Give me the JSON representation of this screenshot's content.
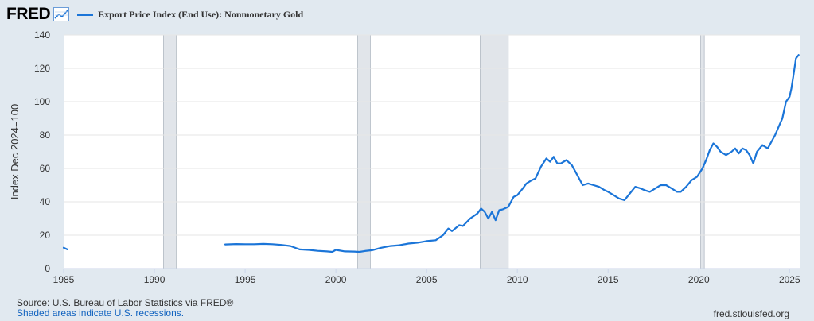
{
  "header": {
    "logo": "FRED",
    "series_label": "Export Price Index (End Use): Nonmonetary Gold"
  },
  "footer": {
    "source": "Source: U.S. Bureau of Labor Statistics via FRED®",
    "recession_note": "Shaded areas indicate U.S. recessions.",
    "site": "fred.stlouisfed.org"
  },
  "colors": {
    "line": "#1b75d8",
    "background": "#e1e9f0",
    "plot_bg": "#ffffff",
    "recession": "#e1e5ea"
  },
  "chart_data": {
    "type": "line",
    "title": "",
    "xlabel": "",
    "ylabel": "Index Dec 2024=100",
    "xlim": [
      1985,
      2025.6
    ],
    "ylim": [
      0,
      140
    ],
    "x_ticks": [
      1985,
      1990,
      1995,
      2000,
      2005,
      2010,
      2015,
      2020,
      2025
    ],
    "y_ticks": [
      0,
      20,
      40,
      60,
      80,
      100,
      120,
      140
    ],
    "grid": true,
    "recessions": [
      [
        1990.5,
        1991.2
      ],
      [
        2001.2,
        2001.9
      ],
      [
        2007.95,
        2009.5
      ],
      [
        2020.1,
        2020.3
      ]
    ],
    "series": [
      {
        "name": "Export Price Index (End Use): Nonmonetary Gold",
        "segments": [
          {
            "x": [
              1985.0,
              1985.2
            ],
            "y": [
              12.5,
              11.5
            ]
          },
          {
            "x": [
              1993.9,
              1994.5,
              1995.0,
              1995.5,
              1996.0,
              1996.5,
              1997.0,
              1997.5,
              1998.0,
              1998.5,
              1999.0,
              1999.5,
              1999.8,
              2000.0,
              2000.5,
              2001.0,
              2001.3,
              2001.6,
              2002.0,
              2002.5,
              2003.0,
              2003.5,
              2004.0,
              2004.5,
              2005.0,
              2005.5,
              2005.9,
              2006.2,
              2006.4,
              2006.8,
              2007.0,
              2007.4,
              2007.8,
              2008.0,
              2008.2,
              2008.4,
              2008.6,
              2008.8,
              2009.0,
              2009.2,
              2009.5,
              2009.8,
              2010.0,
              2010.3,
              2010.5,
              2010.8,
              2011.0,
              2011.3,
              2011.6,
              2011.8,
              2012.0,
              2012.2,
              2012.4,
              2012.7,
              2013.0,
              2013.3,
              2013.6,
              2013.9,
              2014.2,
              2014.5,
              2014.8,
              2015.0,
              2015.3,
              2015.6,
              2015.9,
              2016.2,
              2016.5,
              2016.8,
              2017.0,
              2017.3,
              2017.6,
              2017.9,
              2018.2,
              2018.5,
              2018.8,
              2019.0,
              2019.3,
              2019.6,
              2019.9,
              2020.2,
              2020.4,
              2020.6,
              2020.8,
              2021.0,
              2021.2,
              2021.5,
              2021.8,
              2022.0,
              2022.2,
              2022.4,
              2022.6,
              2022.8,
              2023.0,
              2023.2,
              2023.5,
              2023.8,
              2024.0,
              2024.2,
              2024.4,
              2024.6,
              2024.8,
              2025.0,
              2025.1,
              2025.2,
              2025.35,
              2025.5
            ],
            "y": [
              14.5,
              14.7,
              14.6,
              14.6,
              14.8,
              14.6,
              14.2,
              13.5,
              11.5,
              11.2,
              10.6,
              10.3,
              10.0,
              11.2,
              10.3,
              10.2,
              10.0,
              10.5,
              11.0,
              12.5,
              13.5,
              14.0,
              15.0,
              15.5,
              16.5,
              17.0,
              20.0,
              24.0,
              22.5,
              26.0,
              25.5,
              30.0,
              33.0,
              36.0,
              34.0,
              30.0,
              34.0,
              29.0,
              35.0,
              35.5,
              37.0,
              43.0,
              44.0,
              48.0,
              51.0,
              53.0,
              54.0,
              61.0,
              66.0,
              64.0,
              67.0,
              63.0,
              63.0,
              65.0,
              62.0,
              56.0,
              50.0,
              51.0,
              50.0,
              49.0,
              47.0,
              46.0,
              44.0,
              42.0,
              41.0,
              45.0,
              49.0,
              48.0,
              47.0,
              46.0,
              48.0,
              50.0,
              50.0,
              48.0,
              46.0,
              46.0,
              49.0,
              53.0,
              55.0,
              60.0,
              65.0,
              71.0,
              75.0,
              73.0,
              70.0,
              68.0,
              70.0,
              72.0,
              69.0,
              72.0,
              71.0,
              68.0,
              63.0,
              70.0,
              74.0,
              72.0,
              76.0,
              80.0,
              85.0,
              90.0,
              100.0,
              103.0,
              108.0,
              115.0,
              126.0,
              128.0
            ]
          }
        ]
      }
    ]
  }
}
